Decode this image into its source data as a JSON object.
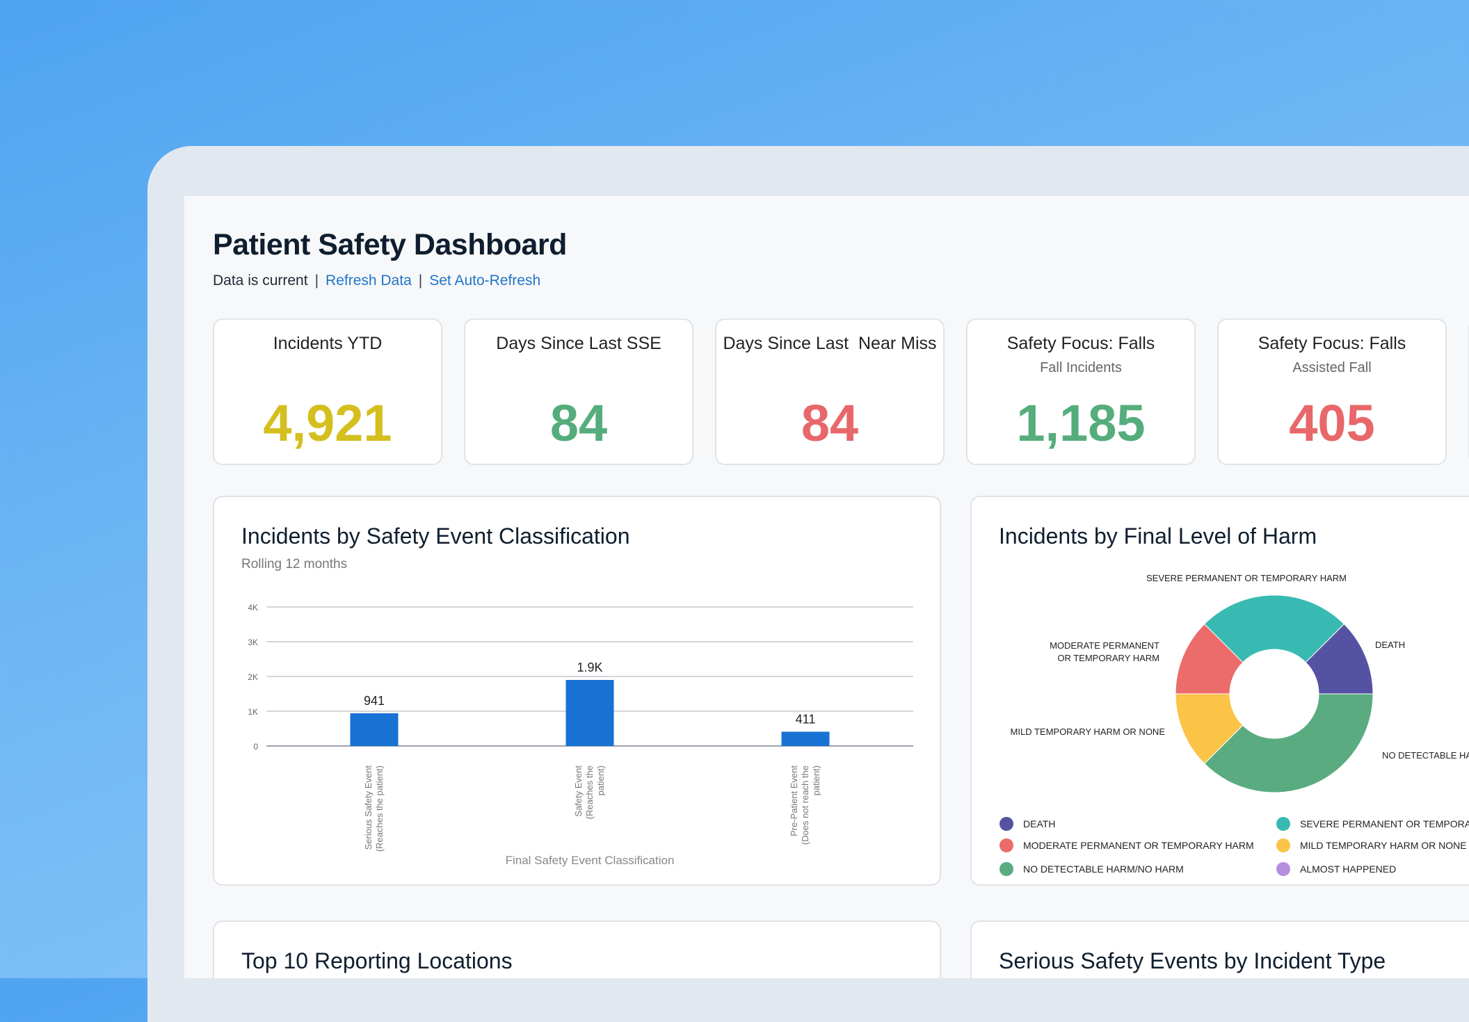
{
  "dashboard": {
    "title": "Patient Safety Dashboard",
    "status_text": "Data is current",
    "refresh_label": "Refresh Data",
    "auto_refresh_label": "Set Auto-Refresh"
  },
  "kpis": [
    {
      "label": "Incidents YTD",
      "sub": "",
      "value": "4,921",
      "color": "#d4bf1f"
    },
    {
      "label": "Days Since Last SSE",
      "sub": "",
      "value": "84",
      "color": "#55ad7c"
    },
    {
      "label": "Days Since Last  Near Miss",
      "sub": "",
      "value": "84",
      "color": "#e8676a"
    },
    {
      "label": "Safety Focus: Falls",
      "sub": "Fall Incidents",
      "value": "1,185",
      "color": "#55ad7c"
    },
    {
      "label": "Safety Focus: Falls",
      "sub": "Assisted Fall",
      "value": "405",
      "color": "#e8676a"
    }
  ],
  "panels": {
    "classification": {
      "title": "Incidents by Safety Event Classification",
      "subtitle": "Rolling 12 months"
    },
    "harm": {
      "title": "Incidents by Final Level of Harm"
    },
    "locations": {
      "title": "Top 10 Reporting Locations"
    },
    "sse_type": {
      "title": "Serious Safety Events by Incident Type"
    }
  },
  "chart_data": [
    {
      "type": "bar",
      "title": "Incidents by Safety Event Classification",
      "subtitle": "Rolling 12 months",
      "xlabel": "Final Safety Event Classification",
      "ylabel": "",
      "categories": [
        [
          "Serious Safety Event",
          "(Reaches the patient)"
        ],
        [
          "Safety Event",
          "(Reaches the",
          "patient)"
        ],
        [
          "Pre-Patient Event",
          "(Does not reach the",
          "patient)"
        ]
      ],
      "values": [
        941,
        1900,
        411
      ],
      "data_labels": [
        "941",
        "1.9K",
        "411"
      ],
      "yticks": [
        0,
        1000,
        2000,
        3000,
        4000
      ],
      "ytick_labels": [
        "0",
        "1K",
        "2K",
        "3K",
        "4K"
      ],
      "ylim": [
        0,
        4000
      ],
      "grid": true,
      "color": "#1872d3"
    },
    {
      "type": "pie",
      "title": "Incidents by Final Level of Harm",
      "slices": [
        {
          "label": "SEVERE PERMANENT OR TEMPORARY HARM",
          "legend": "SEVERE PERMANENT OR TEMPORARY HARM",
          "value": 25,
          "color": "#38bab3"
        },
        {
          "label": "DEATH",
          "legend": "DEATH",
          "value": 12.5,
          "color": "#5652a3"
        },
        {
          "label": "NO DETECTABLE HARM/NO HARM",
          "legend": "NO DETECTABLE HARM/NO HARM",
          "value": 37.5,
          "color": "#5aab80"
        },
        {
          "label": "MILD TEMPORARY HARM OR NONE",
          "legend": "MILD TEMPORARY HARM OR NONE",
          "value": 12.5,
          "color": "#fbc447"
        },
        {
          "label": "MODERATE PERMANENT OR TEMPORARY HARM",
          "legend": "MODERATE PERMANENT OR TEMPORARY HARM",
          "value": 12.5,
          "color": "#ec6b6b"
        }
      ],
      "extra_legend": [
        {
          "label": "ALMOST HAPPENED",
          "color": "#b58ee0"
        }
      ],
      "donut": true
    }
  ]
}
